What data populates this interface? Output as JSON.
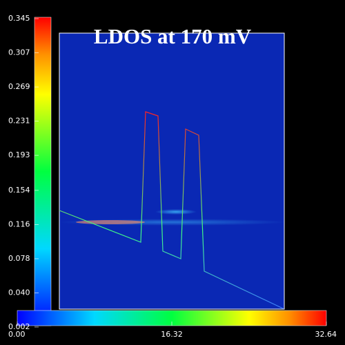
{
  "chart_data": {
    "type": "heatmap",
    "title": "LDOS at 170 mV",
    "vertical_colorbar": {
      "lim": [
        0.002,
        0.345
      ],
      "ticks": [
        0.002,
        {
          "value": 0.04,
          "label": "0.040"
        },
        0.078,
        0.116,
        0.154,
        0.193,
        0.231,
        0.269,
        0.307,
        0.345
      ]
    },
    "horizontal_colorbar": {
      "lim": [
        0,
        32.64
      ],
      "ticks": [
        {
          "value": 0,
          "label": "0.00"
        },
        16.32,
        32.64
      ]
    }
  }
}
